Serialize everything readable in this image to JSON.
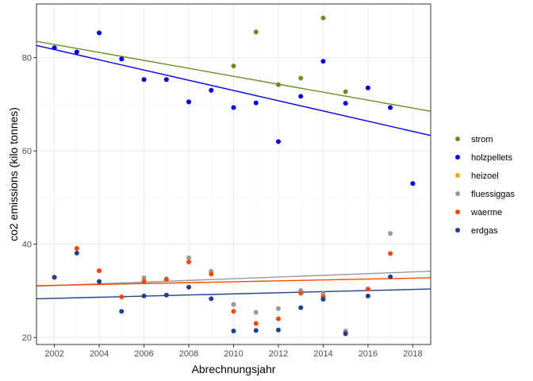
{
  "chart_data": {
    "type": "scatter",
    "title": "",
    "xlabel": "Abrechnungsjahr",
    "ylabel": "co2 emissions (kilo tonnes)",
    "xlim": [
      2001.2,
      2018.8
    ],
    "ylim": [
      18.5,
      91.5
    ],
    "xticks": [
      2002,
      2004,
      2006,
      2008,
      2010,
      2012,
      2014,
      2016,
      2018
    ],
    "yticks": [
      20,
      40,
      60,
      80
    ],
    "xtick_labels": [
      "2002",
      "2004",
      "2006",
      "2008",
      "2010",
      "2012",
      "2014",
      "2016",
      "2018"
    ],
    "ytick_labels": [
      "20",
      "40",
      "60",
      "80"
    ],
    "grid": true,
    "legend_position": "right",
    "series": [
      {
        "name": "strom",
        "color": "#6b8e23",
        "points": [
          [
            2002,
            82.1
          ],
          [
            2003,
            81.2
          ],
          [
            2004,
            85.3
          ],
          [
            2005,
            79.7
          ],
          [
            2006,
            75.3
          ],
          [
            2007,
            75.3
          ],
          [
            2008,
            70.5
          ],
          [
            2009,
            73.0
          ],
          [
            2010,
            78.2
          ],
          [
            2011,
            85.5
          ],
          [
            2012,
            74.2
          ],
          [
            2013,
            75.6
          ],
          [
            2014,
            88.5
          ],
          [
            2015,
            72.7
          ],
          [
            2016,
            73.5
          ],
          [
            2017,
            69.3
          ],
          [
            2018,
            53.0
          ]
        ],
        "trend": [
          [
            2001.2,
            83.5
          ],
          [
            2018.8,
            68.5
          ]
        ]
      },
      {
        "name": "holzpellets",
        "color": "#0000e6",
        "points": [
          [
            2002,
            82.1
          ],
          [
            2003,
            81.2
          ],
          [
            2004,
            85.3
          ],
          [
            2005,
            79.7
          ],
          [
            2006,
            75.3
          ],
          [
            2007,
            75.3
          ],
          [
            2008,
            70.5
          ],
          [
            2009,
            73.0
          ],
          [
            2010,
            69.3
          ],
          [
            2011,
            70.3
          ],
          [
            2012,
            62.0
          ],
          [
            2013,
            71.7
          ],
          [
            2014,
            79.2
          ],
          [
            2015,
            70.2
          ],
          [
            2016,
            73.5
          ],
          [
            2017,
            69.3
          ],
          [
            2018,
            53.0
          ]
        ],
        "trend": [
          [
            2001.2,
            82.6
          ],
          [
            2018.8,
            63.3
          ]
        ]
      },
      {
        "name": "heizoel",
        "color": "#ffa500",
        "points": [],
        "trend": []
      },
      {
        "name": "fluessiggas",
        "color": "#999999",
        "points": [
          [
            2002,
            32.9
          ],
          [
            2003,
            39.1
          ],
          [
            2004,
            34.3
          ],
          [
            2005,
            28.7
          ],
          [
            2006,
            32.8
          ],
          [
            2007,
            32.6
          ],
          [
            2008,
            37.1
          ],
          [
            2009,
            34.2
          ],
          [
            2010,
            27.1
          ],
          [
            2011,
            25.4
          ],
          [
            2012,
            26.2
          ],
          [
            2013,
            30.1
          ],
          [
            2014,
            29.4
          ],
          [
            2015,
            21.4
          ],
          [
            2016,
            30.4
          ],
          [
            2017,
            42.3
          ]
        ],
        "trend": [
          [
            2001.2,
            31.0
          ],
          [
            2018.8,
            34.2
          ]
        ]
      },
      {
        "name": "waerme",
        "color": "#ff4500",
        "points": [
          [
            2002,
            32.9
          ],
          [
            2003,
            39.1
          ],
          [
            2004,
            34.3
          ],
          [
            2005,
            28.7
          ],
          [
            2006,
            32.0
          ],
          [
            2007,
            32.4
          ],
          [
            2008,
            36.2
          ],
          [
            2009,
            33.6
          ],
          [
            2010,
            25.6
          ],
          [
            2011,
            23.0
          ],
          [
            2012,
            24.0
          ],
          [
            2013,
            29.5
          ],
          [
            2014,
            28.7
          ],
          [
            2015,
            21.0
          ],
          [
            2016,
            30.4
          ],
          [
            2017,
            38.0
          ]
        ],
        "trend": [
          [
            2001.2,
            31.1
          ],
          [
            2018.8,
            32.8
          ]
        ]
      },
      {
        "name": "erdgas",
        "color": "#1f3f8f",
        "points": [
          [
            2002,
            32.9
          ],
          [
            2003,
            38.1
          ],
          [
            2004,
            32.0
          ],
          [
            2005,
            25.6
          ],
          [
            2006,
            28.9
          ],
          [
            2007,
            29.1
          ],
          [
            2008,
            30.8
          ],
          [
            2009,
            28.3
          ],
          [
            2010,
            21.4
          ],
          [
            2011,
            21.5
          ],
          [
            2012,
            21.6
          ],
          [
            2013,
            26.4
          ],
          [
            2014,
            28.2
          ],
          [
            2015,
            20.8
          ],
          [
            2016,
            28.9
          ],
          [
            2017,
            33.0
          ]
        ],
        "trend": [
          [
            2001.2,
            28.3
          ],
          [
            2018.8,
            30.4
          ]
        ]
      }
    ]
  }
}
